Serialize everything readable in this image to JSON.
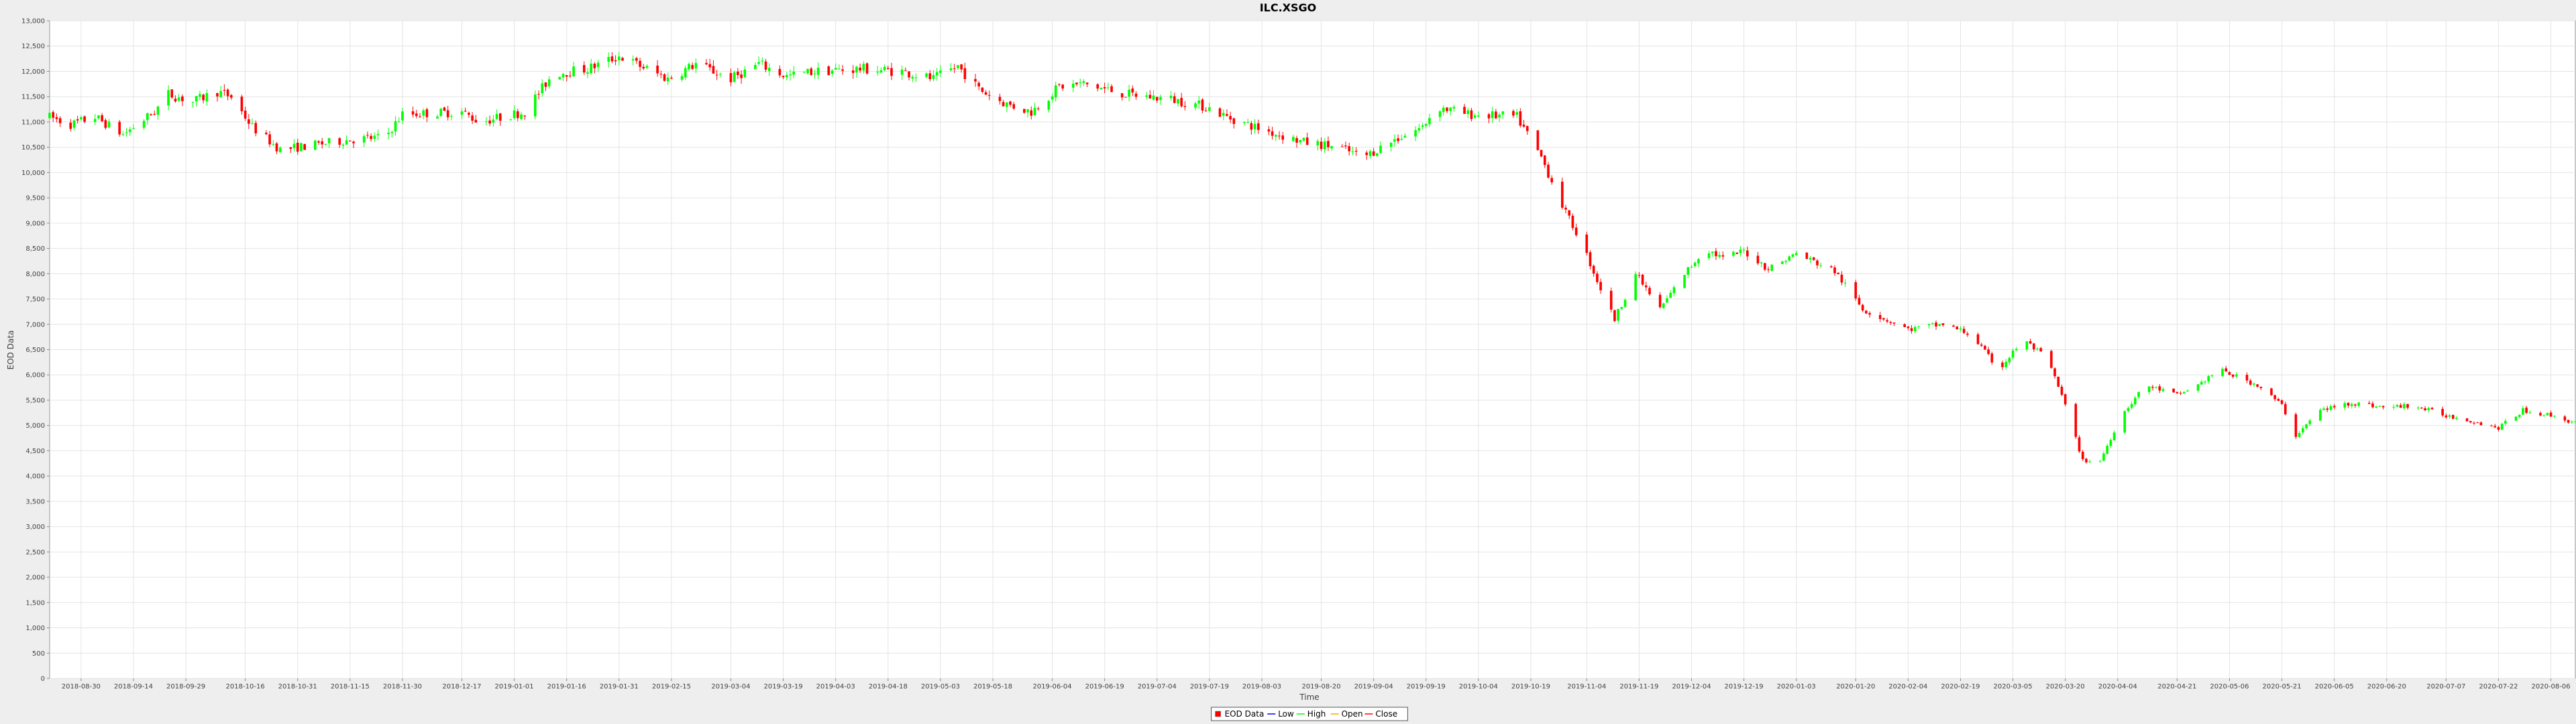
{
  "colors": {
    "background": "#eeeeee",
    "plot_background": "#ffffff",
    "gridline": "#e4e4e4",
    "up": "#00ff00",
    "down": "#ff0000",
    "low_line": "#0000ff",
    "high_line": "#00ff00",
    "open_line": "#ffa500",
    "close_line": "#ff0000"
  },
  "chart_data": {
    "type": "candlestick",
    "title": "ILC.XSGO",
    "xlabel": "Time",
    "ylabel": "EOD Data",
    "ylim": [
      0,
      13000
    ],
    "y_ticks": [
      0,
      500,
      1000,
      1500,
      2000,
      2500,
      3000,
      3500,
      4000,
      4500,
      5000,
      5500,
      6000,
      6500,
      7000,
      7500,
      8000,
      8500,
      9000,
      9500,
      10000,
      10500,
      11000,
      11500,
      12000,
      12500,
      13000
    ],
    "y_tick_labels": [
      "0",
      "500",
      "1,000",
      "1,500",
      "2,000",
      "2,500",
      "3,000",
      "3,500",
      "4,000",
      "4,500",
      "5,000",
      "5,500",
      "6,000",
      "6,500",
      "7,000",
      "7,500",
      "8,000",
      "8,500",
      "9,000",
      "9,500",
      "10,000",
      "10,500",
      "11,000",
      "11,500",
      "12,000",
      "12,500",
      "13,000"
    ],
    "x_range": [
      "2018-08-21",
      "2020-08-13"
    ],
    "x_ticks": [
      "2018-08-30",
      "2018-09-14",
      "2018-09-29",
      "2018-10-16",
      "2018-10-31",
      "2018-11-15",
      "2018-11-30",
      "2018-12-17",
      "2019-01-01",
      "2019-01-16",
      "2019-01-31",
      "2019-02-15",
      "2019-03-04",
      "2019-03-19",
      "2019-04-03",
      "2019-04-18",
      "2019-05-03",
      "2019-05-18",
      "2019-06-04",
      "2019-06-19",
      "2019-07-04",
      "2019-07-19",
      "2019-08-03",
      "2019-08-20",
      "2019-09-04",
      "2019-09-19",
      "2019-10-04",
      "2019-10-19",
      "2019-11-04",
      "2019-11-19",
      "2019-12-04",
      "2019-12-19",
      "2020-01-03",
      "2020-01-20",
      "2020-02-04",
      "2020-02-19",
      "2020-03-05",
      "2020-03-20",
      "2020-04-04",
      "2020-04-21",
      "2020-05-06",
      "2020-05-21",
      "2020-06-05",
      "2020-06-20",
      "2020-07-07",
      "2020-07-22",
      "2020-08-06"
    ],
    "grid": true,
    "legend": {
      "placement": "bottom",
      "items": [
        {
          "label": "EOD Data",
          "swatch": "box",
          "color": "#ff0000"
        },
        {
          "label": "Low",
          "swatch": "line",
          "color": "#0000ff"
        },
        {
          "label": "High",
          "swatch": "line",
          "color": "#00ff00"
        },
        {
          "label": "Open",
          "swatch": "line",
          "color": "#ffa500"
        },
        {
          "label": "Close",
          "swatch": "line",
          "color": "#ff0000"
        }
      ]
    },
    "price_path": [
      [
        "2018-08-21",
        11100
      ],
      [
        "2018-08-27",
        10950
      ],
      [
        "2018-09-03",
        11100
      ],
      [
        "2018-09-11",
        10750
      ],
      [
        "2018-09-20",
        11200
      ],
      [
        "2018-09-24",
        11550
      ],
      [
        "2018-10-01",
        11400
      ],
      [
        "2018-10-08",
        11600
      ],
      [
        "2018-10-12",
        11500
      ],
      [
        "2018-10-18",
        10900
      ],
      [
        "2018-10-26",
        10450
      ],
      [
        "2018-11-05",
        10550
      ],
      [
        "2018-11-15",
        10650
      ],
      [
        "2018-11-25",
        10700
      ],
      [
        "2018-11-30",
        11150
      ],
      [
        "2018-12-17",
        11200
      ],
      [
        "2018-12-22",
        11000
      ],
      [
        "2019-01-04",
        11200
      ],
      [
        "2019-01-12",
        11950
      ],
      [
        "2019-01-22",
        12050
      ],
      [
        "2019-01-31",
        12300
      ],
      [
        "2019-02-08",
        12050
      ],
      [
        "2019-02-14",
        11850
      ],
      [
        "2019-02-22",
        12150
      ],
      [
        "2019-03-04",
        11850
      ],
      [
        "2019-03-12",
        12150
      ],
      [
        "2019-03-20",
        11900
      ],
      [
        "2019-03-28",
        12000
      ],
      [
        "2019-04-10",
        12050
      ],
      [
        "2019-04-22",
        12000
      ],
      [
        "2019-05-01",
        11850
      ],
      [
        "2019-05-08",
        12100
      ],
      [
        "2019-05-14",
        11650
      ],
      [
        "2019-05-22",
        11350
      ],
      [
        "2019-05-29",
        11200
      ],
      [
        "2019-06-06",
        11700
      ],
      [
        "2019-06-13",
        11750
      ],
      [
        "2019-06-25",
        11550
      ],
      [
        "2019-07-08",
        11450
      ],
      [
        "2019-07-18",
        11300
      ],
      [
        "2019-07-24",
        11100
      ],
      [
        "2019-08-03",
        10850
      ],
      [
        "2019-08-15",
        10600
      ],
      [
        "2019-08-25",
        10500
      ],
      [
        "2019-09-01",
        10300
      ],
      [
        "2019-09-10",
        10650
      ],
      [
        "2019-09-18",
        10900
      ],
      [
        "2019-09-22",
        11300
      ],
      [
        "2019-10-01",
        11150
      ],
      [
        "2019-10-15",
        11100
      ],
      [
        "2019-10-22",
        10300
      ],
      [
        "2019-10-29",
        9200
      ],
      [
        "2019-11-02",
        8700
      ],
      [
        "2019-11-08",
        7700
      ],
      [
        "2019-11-12",
        7100
      ],
      [
        "2019-11-18",
        8000
      ],
      [
        "2019-11-25",
        7300
      ],
      [
        "2019-12-02",
        8000
      ],
      [
        "2019-12-08",
        8500
      ],
      [
        "2019-12-13",
        8300
      ],
      [
        "2019-12-19",
        8450
      ],
      [
        "2019-12-26",
        8100
      ],
      [
        "2020-01-03",
        8400
      ],
      [
        "2020-01-14",
        8050
      ],
      [
        "2020-01-22",
        7300
      ],
      [
        "2020-02-04",
        6900
      ],
      [
        "2020-02-14",
        7000
      ],
      [
        "2020-02-22",
        6800
      ],
      [
        "2020-03-01",
        6100
      ],
      [
        "2020-03-08",
        6700
      ],
      [
        "2020-03-15",
        6300
      ],
      [
        "2020-03-20",
        5400
      ],
      [
        "2020-03-25",
        4300
      ],
      [
        "2020-03-30",
        4300
      ],
      [
        "2020-04-05",
        5200
      ],
      [
        "2020-04-12",
        5800
      ],
      [
        "2020-04-21",
        5600
      ],
      [
        "2020-04-27",
        5800
      ],
      [
        "2020-05-03",
        6100
      ],
      [
        "2020-05-14",
        5800
      ],
      [
        "2020-05-21",
        5400
      ],
      [
        "2020-05-25",
        4800
      ],
      [
        "2020-06-01",
        5300
      ],
      [
        "2020-06-10",
        5450
      ],
      [
        "2020-06-20",
        5350
      ],
      [
        "2020-06-27",
        5400
      ],
      [
        "2020-07-07",
        5200
      ],
      [
        "2020-07-14",
        5100
      ],
      [
        "2020-07-22",
        4950
      ],
      [
        "2020-07-29",
        5300
      ],
      [
        "2020-08-06",
        5200
      ],
      [
        "2020-08-13",
        5050
      ]
    ]
  }
}
